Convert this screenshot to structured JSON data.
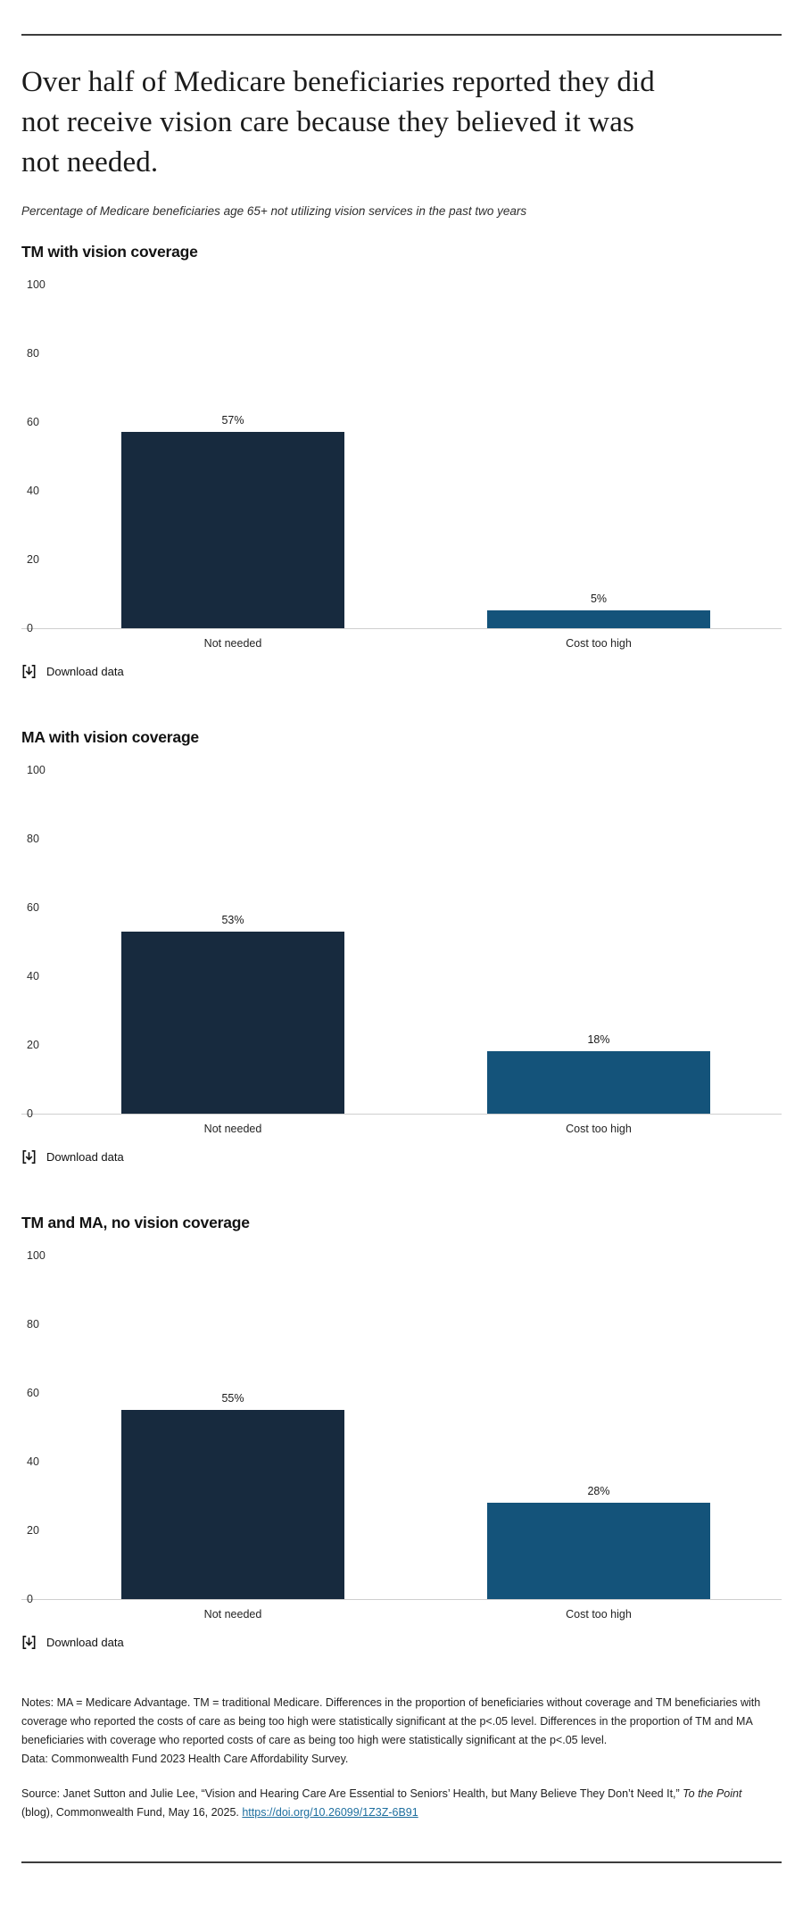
{
  "page": {
    "title": "Over half of Medicare beneficiaries reported they did\nnot receive vision care because they believed it was\nnot needed.",
    "subtitle": "Percentage of Medicare beneficiaries age 65+ not utilizing vision services in the past two years"
  },
  "colors": {
    "navy": "#172A3E",
    "teal": "#14537A",
    "link": "#1E6F9F",
    "axis_line": "#CFCFCF",
    "rule": "#3D3D3D"
  },
  "download_label": "Download data",
  "download_icon": "bracketed-down-arrow",
  "chart_data": [
    {
      "type": "bar",
      "title": "TM with vision coverage",
      "categories": [
        "Not needed",
        "Cost too high"
      ],
      "values": [
        57,
        5
      ],
      "value_labels": [
        "57%",
        "5%"
      ],
      "bar_colors": [
        "#172A3E",
        "#14537A"
      ],
      "ylim": [
        0,
        100
      ],
      "yticks": [
        100,
        80,
        60,
        40,
        20,
        0
      ],
      "grid": false,
      "legend": "none"
    },
    {
      "type": "bar",
      "title": "MA with vision coverage",
      "categories": [
        "Not needed",
        "Cost too high"
      ],
      "values": [
        53,
        18
      ],
      "value_labels": [
        "53%",
        "18%"
      ],
      "bar_colors": [
        "#172A3E",
        "#14537A"
      ],
      "ylim": [
        0,
        100
      ],
      "yticks": [
        100,
        80,
        60,
        40,
        20,
        0
      ],
      "grid": false,
      "legend": "none"
    },
    {
      "type": "bar",
      "title": "TM and MA, no vision coverage",
      "categories": [
        "Not needed",
        "Cost too high"
      ],
      "values": [
        55,
        28
      ],
      "value_labels": [
        "55%",
        "28%"
      ],
      "bar_colors": [
        "#172A3E",
        "#14537A"
      ],
      "ylim": [
        0,
        100
      ],
      "yticks": [
        100,
        80,
        60,
        40,
        20,
        0
      ],
      "grid": false,
      "legend": "none"
    }
  ],
  "notes": {
    "body": "Notes: MA = Medicare Advantage. TM = traditional Medicare. Differences in the proportion of beneficiaries without coverage and TM beneficiaries with coverage who reported the costs of care as being too high were statistically significant at the p<.05 level. Differences in the proportion of TM and MA beneficiaries with coverage who reported costs of care as being too high were statistically significant at the p<.05 level.",
    "data_line": "Data: Commonwealth Fund 2023 Health Care Affordability Survey."
  },
  "source": {
    "prefix": "Source: Janet Sutton and Julie Lee, “Vision and Hearing Care Are Essential to Seniors’ Health, but Many Believe They Don’t Need It,” ",
    "italic": "To the Point",
    "middle": " (blog), Commonwealth Fund, May 16, 2025. ",
    "link_text": "https://doi.org/10.26099/1Z3Z-6B91"
  }
}
